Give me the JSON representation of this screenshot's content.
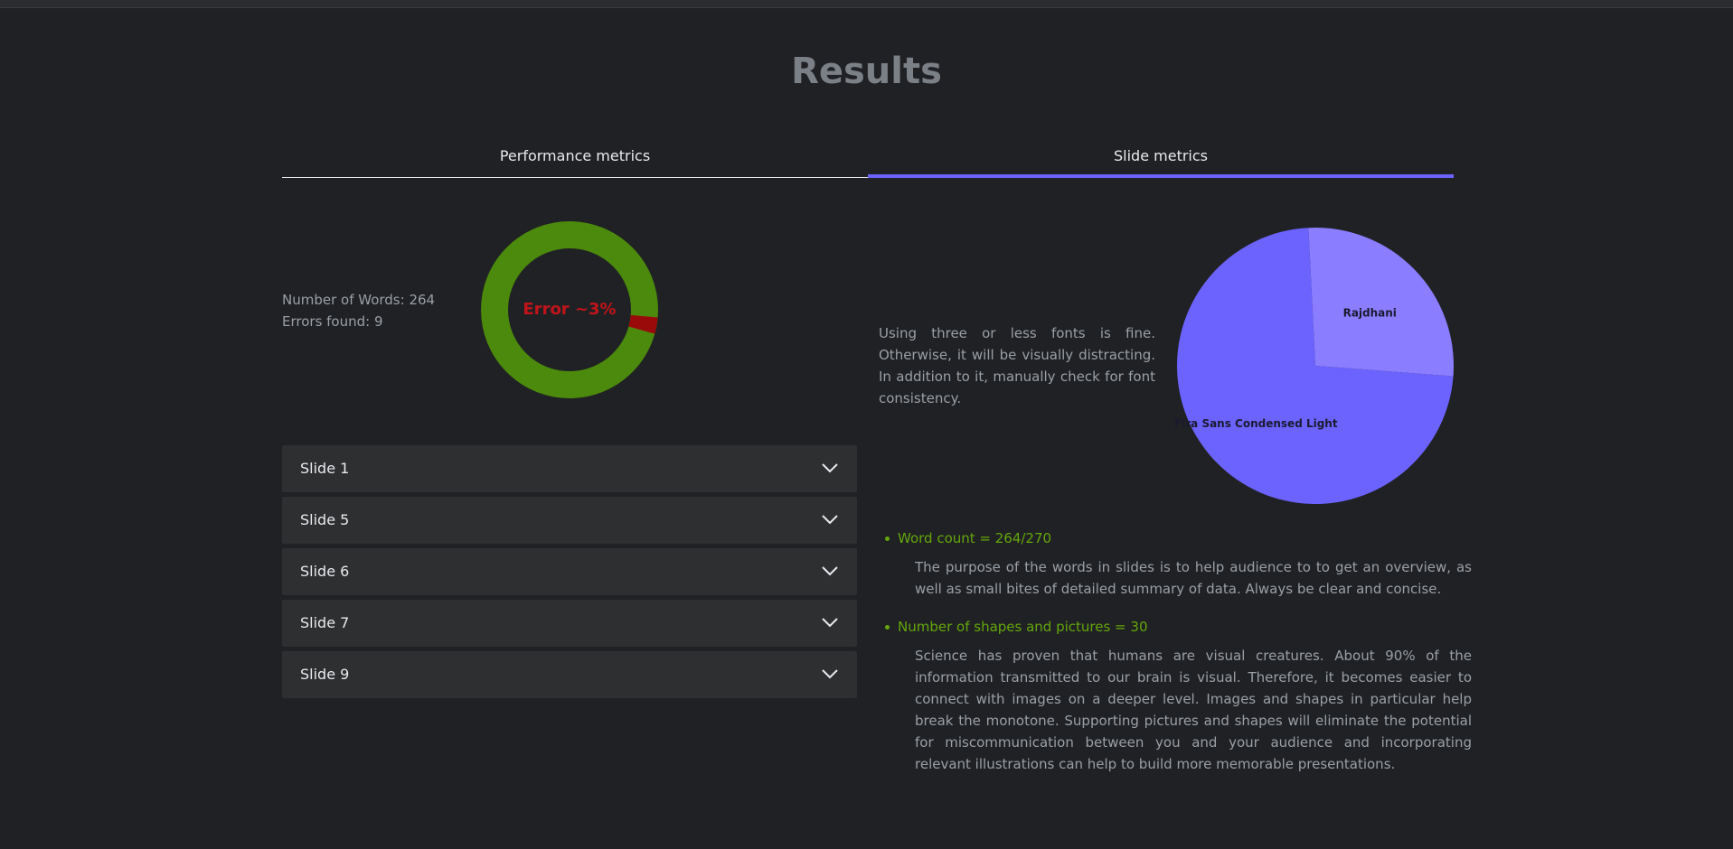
{
  "page": {
    "title": "Results"
  },
  "tabs": [
    {
      "label": "Performance metrics",
      "active": false
    },
    {
      "label": "Slide metrics",
      "active": true
    }
  ],
  "stats": {
    "words_text": "Number of Words: 264",
    "errors_text": "Errors found: 9"
  },
  "donut": {
    "label": "Error ~3%",
    "error_fraction": 0.03,
    "ok_color": "#4b8a0c",
    "error_color": "#9b0a0a",
    "label_color": "#c0141a"
  },
  "slides": [
    {
      "label": "Slide 1"
    },
    {
      "label": "Slide 5"
    },
    {
      "label": "Slide 6"
    },
    {
      "label": "Slide 7"
    },
    {
      "label": "Slide 9"
    }
  ],
  "fonts_note": "Using three or less fonts is fine. Otherwise, it will be visually distracting. In addition to it, manually check for font consistency.",
  "chart_data": {
    "type": "pie",
    "labels": [
      "Rajdhani",
      "Fira Sans Condensed Light"
    ],
    "values": [
      27,
      73
    ],
    "colors": [
      "#8a7dff",
      "#6c63ff"
    ]
  },
  "metrics": [
    {
      "heading": "Word count = 264/270",
      "body": "The purpose of the words in slides is to help audience to to get an overview, as well as small bites of detailed summary of data. Always be clear and concise."
    },
    {
      "heading": "Number of shapes and pictures = 30",
      "body": "Science has proven that humans are visual creatures. About 90% of the information transmitted to our brain is visual. Therefore, it becomes easier to connect with images on a deeper level. Images and shapes in particular help break the monotone. Supporting pictures and shapes will eliminate the potential for miscommunication between you and your audience and incorporating relevant illustrations can help to build more memorable presentations."
    }
  ]
}
